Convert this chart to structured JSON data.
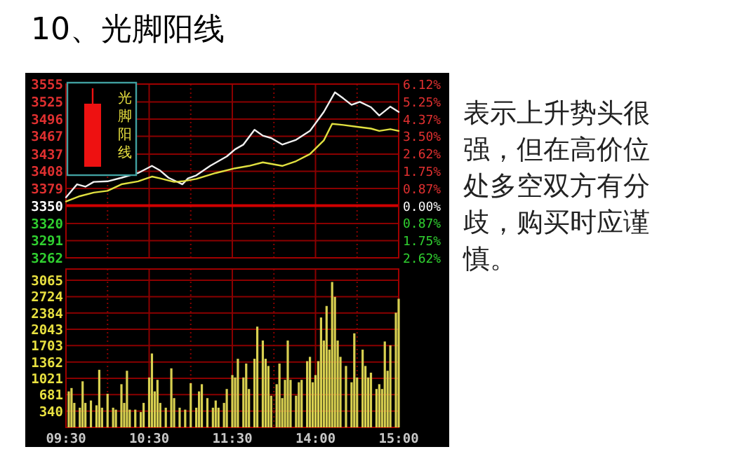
{
  "chart_data": [
    {
      "type": "line",
      "title": "10、光脚阳线",
      "annotations": [
        "光脚阳线"
      ],
      "grid": true,
      "tick_labels": "y",
      "categories": [
        null,
        null,
        null,
        null,
        null,
        null,
        null,
        null,
        null,
        null,
        null,
        null,
        null,
        null,
        null,
        null,
        null,
        null,
        null,
        null,
        null,
        null,
        null,
        null,
        null,
        null,
        null,
        null,
        null,
        null,
        null,
        null,
        null,
        null,
        null,
        null,
        null,
        null,
        null,
        null,
        null,
        null,
        null,
        null,
        null,
        null,
        null,
        null,
        null,
        null,
        null,
        null,
        null,
        null,
        null,
        null,
        null,
        null,
        null,
        null,
        null,
        null,
        null,
        null,
        null,
        null,
        null,
        null,
        null,
        null,
        null,
        null,
        null,
        null,
        null,
        null,
        null,
        null,
        null,
        null,
        null,
        null,
        null,
        null,
        null,
        null,
        null,
        null,
        null,
        null,
        null,
        null,
        null,
        null,
        null,
        null,
        null,
        null,
        null,
        null,
        null,
        null,
        null,
        null,
        null,
        null,
        null,
        null,
        null,
        null,
        null,
        null,
        null,
        null,
        null,
        null,
        null,
        null,
        null,
        null,
        null
      ],
      "ylim": [
        3262,
        3555
      ],
      "yticks": [
        3262,
        3291,
        3320,
        3350,
        3379,
        3408,
        3437,
        3467,
        3496,
        3525,
        3555
      ],
      "y2lim": [
        -2.62,
        6.12
      ],
      "y2ticks": [
        {
          "value": -2.62,
          "label": "2.62%"
        },
        {
          "value": -1.75,
          "label": "1.75%"
        },
        {
          "value": -0.87,
          "label": "0.87%"
        },
        {
          "value": 0,
          "label": "0.00%"
        },
        {
          "value": 0.87,
          "label": "0.87%"
        },
        {
          "value": 1.75,
          "label": "1.75%"
        },
        {
          "value": 2.62,
          "label": "2.62%"
        },
        {
          "value": 3.5,
          "label": "3.50%"
        },
        {
          "value": 4.37,
          "label": "4.37%"
        },
        {
          "value": 5.25,
          "label": "5.25%"
        },
        {
          "value": 6.12,
          "label": "6.12%"
        }
      ],
      "ref_lines": [
        {
          "axis": "y",
          "value": 3350,
          "color": "#d00000"
        }
      ],
      "series": [
        {
          "color": "#f0f0f0",
          "values": [
            3364,
            null,
            null,
            null,
            3386,
            null,
            null,
            3382,
            null,
            null,
            3390,
            null,
            null,
            null,
            null,
            3391,
            null,
            null,
            null,
            null,
            3397,
            null,
            null,
            null,
            null,
            null,
            3405,
            null,
            null,
            null,
            null,
            3417,
            null,
            null,
            3409,
            null,
            null,
            3397,
            null,
            null,
            null,
            null,
            3386,
            null,
            3396,
            null,
            null,
            3401,
            null,
            null,
            null,
            null,
            3417,
            null,
            null,
            null,
            null,
            null,
            3433,
            null,
            null,
            3445,
            null,
            null,
            3453,
            null,
            null,
            null,
            3478,
            null,
            null,
            3468,
            null,
            null,
            3464,
            null,
            null,
            null,
            3453,
            null,
            null,
            null,
            null,
            3461,
            null,
            null,
            null,
            null,
            3476,
            null,
            null,
            null,
            null,
            3508,
            null,
            null,
            null,
            3541,
            null,
            null,
            3531,
            null,
            null,
            3520,
            null,
            null,
            3525,
            null,
            null,
            null,
            3516,
            null,
            null,
            3502,
            null,
            null,
            null,
            3517,
            null,
            null,
            3508
          ]
        },
        {
          "color": "#e0e040",
          "values": [
            3357,
            null,
            null,
            null,
            null,
            3366,
            null,
            null,
            null,
            null,
            3372,
            null,
            null,
            null,
            null,
            3375,
            null,
            null,
            null,
            null,
            3386,
            null,
            null,
            null,
            null,
            null,
            3391,
            null,
            null,
            null,
            null,
            3399,
            null,
            null,
            3396,
            null,
            null,
            null,
            null,
            3390,
            null,
            null,
            3391,
            null,
            null,
            null,
            null,
            3395,
            null,
            null,
            null,
            null,
            null,
            null,
            3405,
            null,
            null,
            null,
            null,
            null,
            null,
            3413,
            null,
            null,
            null,
            null,
            3417,
            null,
            null,
            null,
            null,
            3423,
            null,
            null,
            null,
            null,
            null,
            null,
            3417,
            null,
            null,
            null,
            null,
            3425,
            null,
            null,
            null,
            null,
            3437,
            null,
            null,
            null,
            null,
            3460,
            null,
            null,
            3488,
            null,
            null,
            null,
            3486,
            null,
            null,
            null,
            null,
            3483,
            null,
            null,
            null,
            null,
            3480,
            null,
            null,
            3476,
            null,
            null,
            null,
            3479,
            null,
            null,
            3476
          ]
        }
      ]
    },
    {
      "type": "bar",
      "grid": true,
      "color": "#d8d050",
      "categories": [
        "09:30",
        null,
        null,
        null,
        null,
        null,
        null,
        null,
        null,
        null,
        null,
        null,
        null,
        null,
        null,
        null,
        null,
        null,
        null,
        null,
        null,
        null,
        null,
        null,
        null,
        null,
        null,
        null,
        null,
        null,
        "10:30",
        null,
        null,
        null,
        null,
        null,
        null,
        null,
        null,
        null,
        null,
        null,
        null,
        null,
        null,
        null,
        null,
        null,
        null,
        null,
        null,
        null,
        null,
        null,
        null,
        null,
        null,
        null,
        null,
        null,
        "11:30",
        null,
        null,
        null,
        null,
        null,
        null,
        null,
        null,
        null,
        null,
        null,
        null,
        null,
        null,
        null,
        null,
        null,
        null,
        null,
        null,
        null,
        null,
        null,
        null,
        null,
        null,
        null,
        null,
        null,
        "14:00",
        null,
        null,
        null,
        null,
        null,
        null,
        null,
        null,
        null,
        null,
        null,
        null,
        null,
        null,
        null,
        null,
        null,
        null,
        null,
        null,
        null,
        null,
        null,
        null,
        null,
        null,
        null,
        null,
        null,
        "15:00"
      ],
      "ylim": [
        0,
        3300
      ],
      "yticks": [
        340,
        681,
        1021,
        1362,
        1703,
        2043,
        2384,
        2724,
        3065
      ],
      "values": [
        null,
        750,
        820,
        510,
        null,
        410,
        960,
        510,
        null,
        560,
        null,
        460,
        1200,
        410,
        null,
        700,
        null,
        410,
        370,
        null,
        900,
        510,
        1180,
        370,
        null,
        370,
        null,
        320,
        510,
        null,
        1040,
        1540,
        750,
        990,
        510,
        null,
        410,
        null,
        1230,
        610,
        null,
        410,
        null,
        370,
        null,
        920,
        null,
        410,
        750,
        900,
        null,
        610,
        null,
        410,
        560,
        410,
        null,
        510,
        800,
        null,
        1090,
        1040,
        1430,
        null,
        1040,
        1330,
        800,
        null,
        1430,
        2100,
        null,
        1810,
        1430,
        1280,
        660,
        null,
        900,
        1330,
        610,
        990,
        1810,
        990,
        null,
        660,
        940,
        990,
        null,
        1380,
        1470,
        940,
        1090,
        1380,
        2290,
        1810,
        2530,
        1620,
        3030,
        2720,
        1810,
        1470,
        null,
        1280,
        null,
        940,
        1960,
        1040,
        null,
        1620,
        1280,
        1040,
        1140,
        null,
        800,
        900,
        800,
        1790,
        1180,
        1710,
        null,
        2390,
        2680
      ]
    },
    {
      "type": "other",
      "annotations": [
        "表示上升势头很强，但在高价位处多空双方有分歧，购买时应谨慎。"
      ]
    }
  ]
}
